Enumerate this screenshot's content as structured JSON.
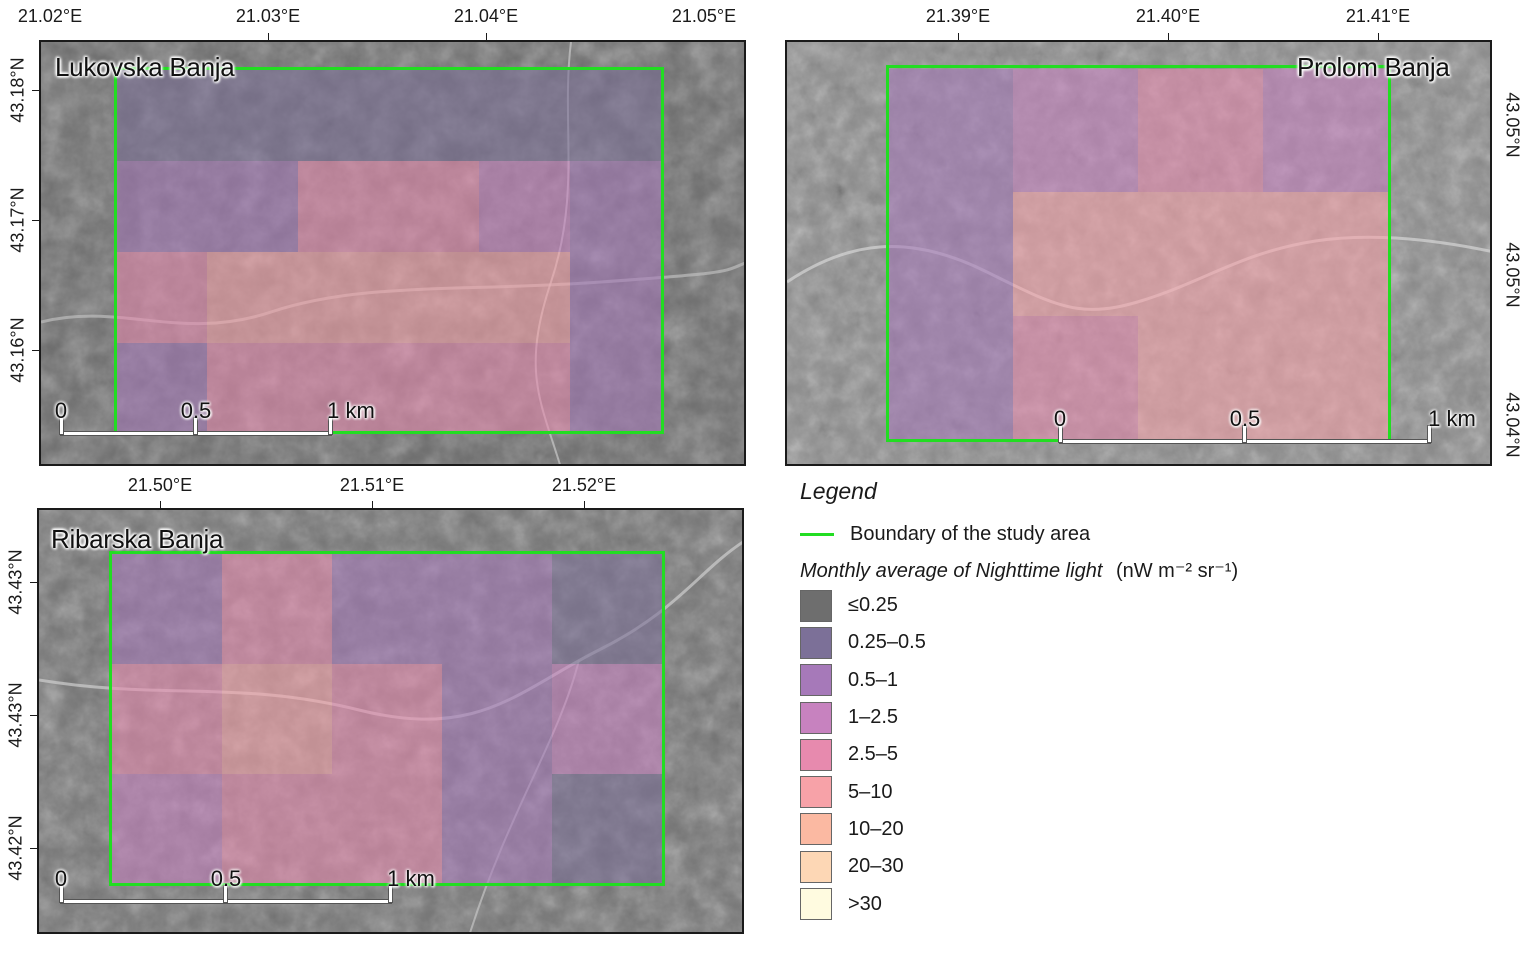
{
  "maps": [
    {
      "id": "lukovska",
      "title": "Lukovska Banja",
      "lon_ticks": [
        "21.02°E",
        "21.03°E",
        "21.04°E",
        "21.05°E"
      ],
      "lat_ticks": [
        "43.18°N",
        "43.17°N",
        "43.16°N"
      ],
      "lat_side": "left",
      "scalebar": [
        "0",
        "0.5",
        "1 km"
      ],
      "grid_classes": [
        [
          "0.25–0.5",
          "0.25–0.5",
          "0.25–0.5",
          "0.25–0.5",
          "0.25–0.5",
          "0.25–0.5"
        ],
        [
          "0.5–1",
          "0.5–1",
          "2.5–5",
          "2.5–5",
          "1–2.5",
          "0.5–1"
        ],
        [
          "2.5–5",
          "5–10",
          "5–10",
          "5–10",
          "5–10",
          "0.5–1"
        ],
        [
          "0.5–1",
          "2.5–5",
          "2.5–5",
          "2.5–5",
          "2.5–5",
          "0.5–1"
        ]
      ]
    },
    {
      "id": "prolom",
      "title": "Prolom Banja",
      "lon_ticks": [
        "21.39°E",
        "21.40°E",
        "21.41°E"
      ],
      "lat_ticks": [
        "43.05°N",
        "43.05°N",
        "43.04°N"
      ],
      "lat_side": "right",
      "scalebar": [
        "0",
        "0.5",
        "1 km"
      ],
      "grid_classes": [
        [
          "0.5–1",
          "1–2.5",
          "2.5–5",
          "1–2.5"
        ],
        [
          "0.5–1",
          "5–10",
          "5–10",
          "5–10"
        ],
        [
          "0.5–1",
          "2.5–5",
          "5–10",
          "5–10"
        ]
      ]
    },
    {
      "id": "ribarska",
      "title": "Ribarska Banja",
      "lon_ticks": [
        "21.50°E",
        "21.51°E",
        "21.52°E"
      ],
      "lat_ticks": [
        "43.43°N",
        "43.43°N",
        "43.42°N"
      ],
      "lat_side": "left",
      "scalebar": [
        "0",
        "0.5",
        "1 km"
      ],
      "grid_classes": [
        [
          "0.5–1",
          "2.5–5",
          "0.5–1",
          "0.5–1",
          "0.25–0.5"
        ],
        [
          "2.5–5",
          "5–10",
          "2.5–5",
          "0.5–1",
          "1–2.5"
        ],
        [
          "1–2.5",
          "2.5–5",
          "2.5–5",
          "0.5–1",
          "0.25–0.5"
        ]
      ]
    }
  ],
  "legend": {
    "title": "Legend",
    "boundary_label": "Boundary of the study area",
    "boundary_color": "#22dd22",
    "variable_label": "Monthly average of Nighttime light",
    "unit_label": "(nW m⁻² sr⁻¹)",
    "classes": [
      {
        "label": "≤0.25",
        "color": "#6e6e6e"
      },
      {
        "label": "0.25–0.5",
        "color": "#7c7098"
      },
      {
        "label": "0.5–1",
        "color": "#a679b9"
      },
      {
        "label": "1–2.5",
        "color": "#c782bf"
      },
      {
        "label": "2.5–5",
        "color": "#e78aae"
      },
      {
        "label": "5–10",
        "color": "#f7a2a8"
      },
      {
        "label": "10–20",
        "color": "#fbb9a2"
      },
      {
        "label": "20–30",
        "color": "#fdd7b5"
      },
      {
        "label": ">30",
        "color": "#fffbe0"
      }
    ]
  }
}
